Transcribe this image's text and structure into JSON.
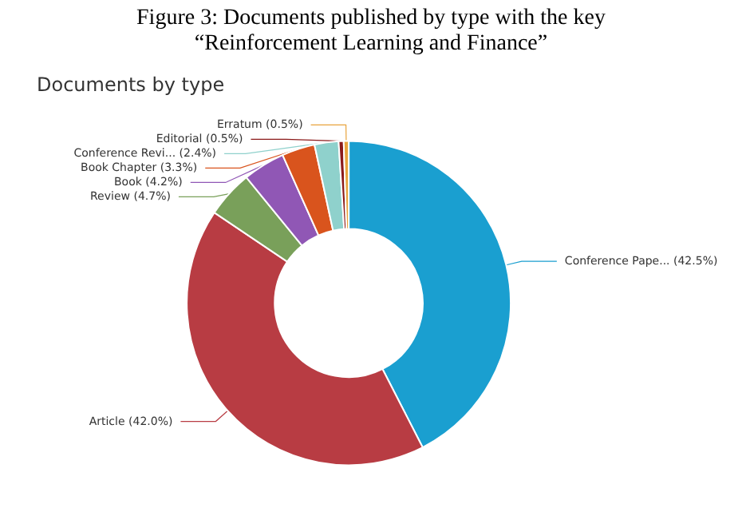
{
  "chart_data": {
    "type": "donut",
    "title": "Figure 3: Documents published by type with the key “Reinforcement Learning and Finance”",
    "subtitle": "Documents by type",
    "categories": [
      "Conference Pape...",
      "Article",
      "Review",
      "Book",
      "Book Chapter",
      "Conference Revi...",
      "Editorial",
      "Erratum"
    ],
    "values": [
      42.5,
      42.0,
      4.7,
      4.2,
      3.3,
      2.4,
      0.5,
      0.5
    ],
    "colors": [
      "#1a9fd0",
      "#b83c43",
      "#79a05a",
      "#9057b5",
      "#d9541d",
      "#8fd1cc",
      "#8b1a1a",
      "#e8a33c"
    ],
    "value_labels": [
      "(42.5%)",
      "(42.0%)",
      "(4.7%)",
      "(4.2%)",
      "(3.3%)",
      "(2.4%)",
      "(0.5%)",
      "(0.5%)"
    ],
    "legend": false
  }
}
